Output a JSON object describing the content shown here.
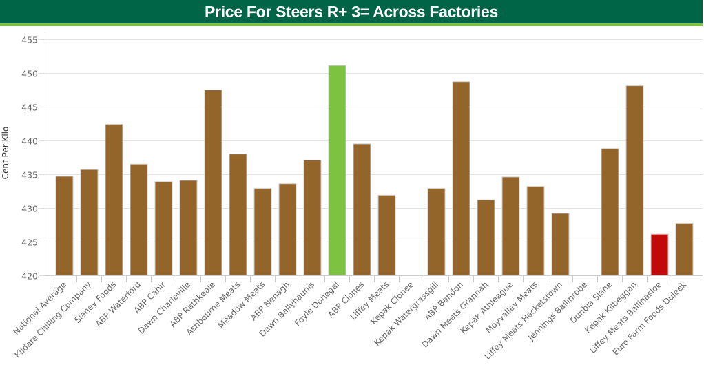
{
  "header": {
    "title": "Price For Steers R+ 3= Across Factories"
  },
  "chart_data": {
    "type": "bar",
    "title": "Price For Steers R+ 3= Across Factories",
    "xlabel": "",
    "ylabel": "Cent Per Kilo",
    "ylim": [
      420,
      455
    ],
    "yticks": [
      420,
      425,
      430,
      435,
      440,
      445,
      450,
      455
    ],
    "grid": true,
    "categories": [
      "National Average",
      "Kildare Chilling Company",
      "Slaney Foods",
      "ABP Waterford",
      "ABP Cahir",
      "Dawn Charleville",
      "ABP Rathkeale",
      "Ashbourne Meats",
      "Meadow Meats",
      "ABP Nenagh",
      "Dawn Ballyhaunis",
      "Foyle Donegal",
      "ABP Clones",
      "Liffey Meats",
      "Kepak Clonee",
      "Kepak Watergrassgill",
      "ABP Bandon",
      "Dawn Meats Grannah",
      "Kepak Athleague",
      "Moyvalley Meats",
      "Liffey Meats Hacketstown",
      "Jennings Ballinrobe",
      "Dunbia Slane",
      "Kepak Kilbeggan",
      "Liffey Meats Ballinasloe",
      "Euro Farm Foods Duleek"
    ],
    "values": [
      434.7,
      435.7,
      442.4,
      436.5,
      433.9,
      434.1,
      447.5,
      438.0,
      432.9,
      433.6,
      437.1,
      451.1,
      439.5,
      431.9,
      null,
      432.9,
      448.7,
      431.2,
      434.6,
      433.2,
      429.2,
      null,
      438.8,
      448.1,
      426.1,
      427.7
    ],
    "highlight": {
      "max_index": 11,
      "min_index": 24
    },
    "colors": {
      "default": "#93652b",
      "highest": "#7dc241",
      "lowest": "#c00a0a",
      "header_bg": "#006446",
      "header_accent": "#7dc241"
    }
  }
}
